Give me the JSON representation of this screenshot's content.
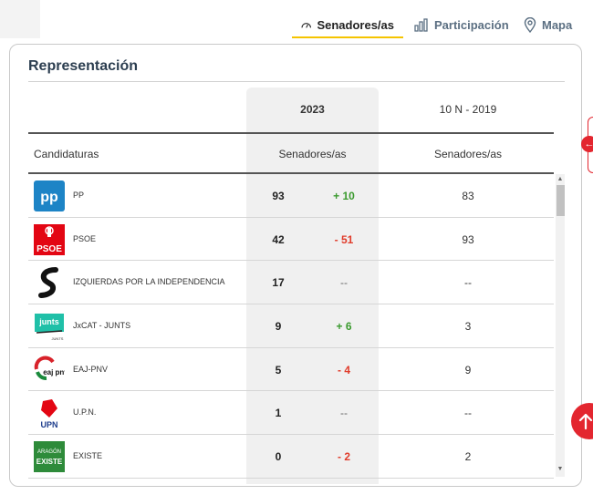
{
  "tabs": [
    {
      "label": "Senadores/as",
      "icon": "dashboard-gauge-icon",
      "active": true
    },
    {
      "label": "Participación",
      "icon": "bar-chart-icon",
      "active": false
    },
    {
      "label": "Mapa",
      "icon": "map-pin-icon",
      "active": false
    }
  ],
  "card": {
    "title": "Representación",
    "year_current": "2023",
    "year_previous": "10 N - 2019",
    "col_candidaturas": "Candidaturas",
    "col_seats_current": "Senadores/as",
    "col_seats_previous": "Senadores/as"
  },
  "parties": [
    {
      "name": "PP",
      "logo": "pp-logo",
      "logo_text": "pp",
      "seats": "93",
      "diff": "+ 10",
      "trend": "up",
      "seats_2019": "83"
    },
    {
      "name": "PSOE",
      "logo": "psoe-logo",
      "logo_text": "PSOE",
      "seats": "42",
      "diff": "- 51",
      "trend": "down",
      "seats_2019": "93"
    },
    {
      "name": "IZQUIERDAS POR LA INDEPENDENCIA",
      "logo": "izquierdas-logo",
      "logo_text": "",
      "seats": "17",
      "diff": "--",
      "trend": "eq",
      "seats_2019": "--"
    },
    {
      "name": "JxCAT - JUNTS",
      "logo": "junts-logo",
      "logo_text": "junts",
      "logo_subtext": "JUNTS",
      "seats": "9",
      "diff": "+ 6",
      "trend": "up",
      "seats_2019": "3"
    },
    {
      "name": "EAJ-PNV",
      "logo": "eaj-pnv-logo",
      "logo_text": "eaj pnv",
      "seats": "5",
      "diff": "- 4",
      "trend": "down",
      "seats_2019": "9"
    },
    {
      "name": "U.P.N.",
      "logo": "upn-logo",
      "logo_text": "UPN",
      "seats": "1",
      "diff": "--",
      "trend": "eq",
      "seats_2019": "--"
    },
    {
      "name": "EXISTE",
      "logo": "existe-logo",
      "logo_text": "ARAGÓN",
      "logo_subtext": "EXISTE",
      "seats": "0",
      "diff": "- 2",
      "trend": "down",
      "seats_2019": "2"
    }
  ],
  "colors": {
    "accent_tab_underline": "#f5c400",
    "gain": "#3a9a2e",
    "loss": "#e03b2a",
    "brand_red": "#e3262f"
  },
  "floating": {
    "side_tab_icon": "arrow-left-icon",
    "scroll_top_icon": "arrow-up-icon"
  }
}
